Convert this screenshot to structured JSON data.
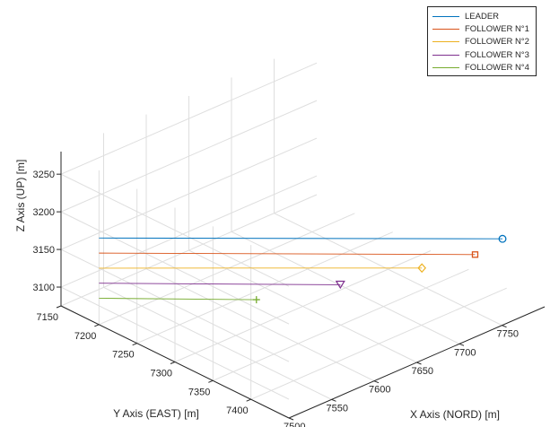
{
  "chart_data": {
    "type": "line3d",
    "xlabel": "X Axis (NORD) [m]",
    "ylabel": "Y Axis (EAST) [m]",
    "zlabel": "Z Axis (UP) [m]",
    "xlim": [
      7500,
      7800
    ],
    "ylim": [
      7150,
      7450
    ],
    "zlim": [
      3075,
      3280
    ],
    "x_ticks": [
      "7500",
      "7550",
      "7600",
      "7650",
      "7700",
      "7750"
    ],
    "y_ticks": [
      "7150",
      "7200",
      "7250",
      "7300",
      "7350",
      "7400"
    ],
    "z_ticks": [
      "3100",
      "3150",
      "3200",
      "3250"
    ],
    "grid": true,
    "legend_position": "top-right",
    "series": [
      {
        "name": "LEADER",
        "color": "#0072bd",
        "marker": "circle",
        "start": {
          "x": 7500,
          "y": 7200,
          "z": 3190
        },
        "end": {
          "x": 7755,
          "y": 7445,
          "z": 3185
        }
      },
      {
        "name": "FOLLOWER N°1",
        "color": "#d95319",
        "marker": "square",
        "start": {
          "x": 7500,
          "y": 7200,
          "z": 3170
        },
        "end": {
          "x": 7738,
          "y": 7428,
          "z": 3164
        }
      },
      {
        "name": "FOLLOWER N°2",
        "color": "#edb120",
        "marker": "diamond",
        "start": {
          "x": 7500,
          "y": 7200,
          "z": 3150
        },
        "end": {
          "x": 7705,
          "y": 7395,
          "z": 3146
        }
      },
      {
        "name": "FOLLOWER N°3",
        "color": "#7e2f8e",
        "marker": "triangle-down",
        "start": {
          "x": 7500,
          "y": 7200,
          "z": 3130
        },
        "end": {
          "x": 7653,
          "y": 7346,
          "z": 3125
        }
      },
      {
        "name": "FOLLOWER N°4",
        "color": "#77ac30",
        "marker": "plus",
        "start": {
          "x": 7500,
          "y": 7200,
          "z": 3110
        },
        "end": {
          "x": 7600,
          "y": 7295,
          "z": 3106
        }
      }
    ]
  }
}
